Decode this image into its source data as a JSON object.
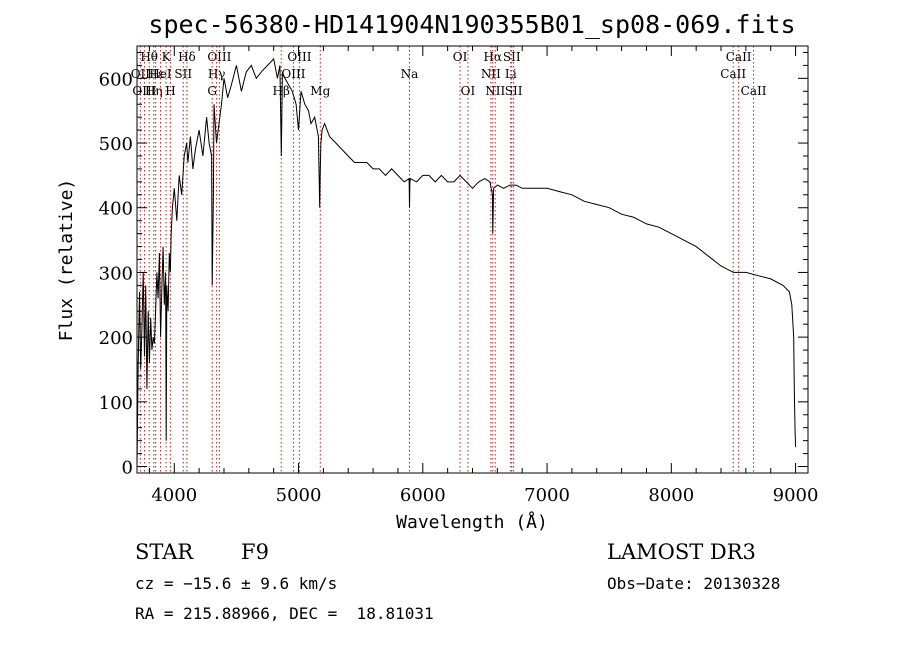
{
  "chart_data": {
    "type": "line",
    "title": "spec-56380-HD141904N190355B01_sp08-069.fits",
    "xlabel": "Wavelength (Å)",
    "ylabel": "Flux (relative)",
    "xlim": [
      3700,
      9100
    ],
    "ylim": [
      -10,
      650
    ],
    "xticks": [
      4000,
      5000,
      6000,
      7000,
      8000,
      9000
    ],
    "yticks": [
      0,
      100,
      200,
      300,
      400,
      500,
      600
    ],
    "series": [
      {
        "name": "flux",
        "x": [
          3700,
          3710,
          3720,
          3730,
          3740,
          3750,
          3760,
          3770,
          3780,
          3790,
          3800,
          3810,
          3820,
          3830,
          3840,
          3850,
          3860,
          3870,
          3880,
          3890,
          3900,
          3910,
          3920,
          3930,
          3935,
          3940,
          3950,
          3960,
          3968,
          3975,
          3985,
          4000,
          4020,
          4040,
          4060,
          4080,
          4100,
          4110,
          4130,
          4150,
          4170,
          4200,
          4230,
          4260,
          4280,
          4300,
          4305,
          4310,
          4315,
          4320,
          4340,
          4360,
          4380,
          4400,
          4430,
          4460,
          4500,
          4540,
          4580,
          4620,
          4660,
          4700,
          4750,
          4800,
          4830,
          4850,
          4861,
          4870,
          4890,
          4920,
          4950,
          4980,
          5000,
          5020,
          5050,
          5080,
          5100,
          5130,
          5160,
          5170,
          5175,
          5180,
          5190,
          5210,
          5250,
          5300,
          5350,
          5400,
          5450,
          5500,
          5550,
          5600,
          5650,
          5700,
          5750,
          5800,
          5850,
          5890,
          5893,
          5896,
          5900,
          5950,
          6000,
          6050,
          6100,
          6150,
          6200,
          6250,
          6300,
          6350,
          6400,
          6450,
          6500,
          6540,
          6560,
          6563,
          6570,
          6600,
          6650,
          6700,
          6750,
          6800,
          6850,
          6900,
          7000,
          7100,
          7200,
          7300,
          7400,
          7500,
          7600,
          7700,
          7800,
          7900,
          8000,
          8100,
          8200,
          8300,
          8400,
          8500,
          8540,
          8600,
          8700,
          8800,
          8900,
          8950,
          8970,
          8985,
          8990,
          8995,
          9000
        ],
        "values": [
          0,
          160,
          270,
          150,
          220,
          300,
          170,
          280,
          120,
          240,
          160,
          230,
          180,
          200,
          190,
          240,
          300,
          260,
          330,
          200,
          280,
          340,
          250,
          300,
          40,
          280,
          240,
          330,
          300,
          360,
          400,
          430,
          380,
          450,
          420,
          480,
          500,
          470,
          510,
          460,
          490,
          520,
          480,
          540,
          500,
          480,
          280,
          350,
          420,
          560,
          500,
          530,
          560,
          600,
          570,
          590,
          620,
          580,
          610,
          620,
          600,
          610,
          620,
          630,
          600,
          620,
          480,
          610,
          600,
          590,
          580,
          560,
          520,
          580,
          560,
          550,
          530,
          540,
          510,
          400,
          460,
          500,
          520,
          530,
          510,
          500,
          490,
          480,
          470,
          470,
          470,
          460,
          460,
          450,
          460,
          450,
          440,
          445,
          400,
          440,
          445,
          440,
          450,
          450,
          440,
          450,
          440,
          440,
          450,
          440,
          430,
          440,
          445,
          440,
          420,
          360,
          430,
          435,
          430,
          435,
          435,
          430,
          430,
          430,
          430,
          425,
          420,
          410,
          405,
          400,
          390,
          385,
          375,
          370,
          360,
          350,
          340,
          325,
          310,
          300,
          300,
          300,
          295,
          290,
          280,
          270,
          250,
          200,
          120,
          60,
          30
        ],
        "color": "#000000"
      }
    ],
    "line_markers": [
      {
        "name": "Hθ",
        "x": 3798,
        "row": 1
      },
      {
        "name": "OII",
        "x": 3727,
        "row": 2
      },
      {
        "name": "OIII",
        "x": 3760,
        "row": 3
      },
      {
        "name": "K",
        "x": 3934,
        "row": 1
      },
      {
        "name": "Hε",
        "x": 3850,
        "row": 2
      },
      {
        "name": "Hη",
        "x": 3835,
        "row": 3
      },
      {
        "name": "H",
        "x": 3969,
        "row": 3
      },
      {
        "name": "Hδ",
        "x": 4102,
        "row": 1
      },
      {
        "name": "HeI",
        "x": 3889,
        "row": 2
      },
      {
        "name": "SII",
        "x": 4072,
        "row": 2
      },
      {
        "name": "OIII",
        "x": 4363,
        "row": 1
      },
      {
        "name": "Hγ",
        "x": 4341,
        "row": 2
      },
      {
        "name": "G",
        "x": 4305,
        "row": 3
      },
      {
        "name": "OIII",
        "x": 5007,
        "row": 1
      },
      {
        "name": "OIII",
        "x": 4959,
        "row": 2
      },
      {
        "name": "Hβ",
        "x": 4861,
        "row": 3
      },
      {
        "name": "Mg",
        "x": 5175,
        "row": 3
      },
      {
        "name": "Na",
        "x": 5893,
        "row": 2
      },
      {
        "name": "OI",
        "x": 6300,
        "row": 1
      },
      {
        "name": "OI",
        "x": 6363,
        "row": 3
      },
      {
        "name": "Hα",
        "x": 6563,
        "row": 1
      },
      {
        "name": "NII",
        "x": 6548,
        "row": 2
      },
      {
        "name": "NII",
        "x": 6583,
        "row": 3
      },
      {
        "name": "SII",
        "x": 6716,
        "row": 1
      },
      {
        "name": "Li",
        "x": 6708,
        "row": 2
      },
      {
        "name": "SII",
        "x": 6731,
        "row": 3
      },
      {
        "name": "CaII",
        "x": 8542,
        "row": 1
      },
      {
        "name": "CaII",
        "x": 8498,
        "row": 2
      },
      {
        "name": "CaII",
        "x": 8662,
        "row": 3
      }
    ]
  },
  "info": {
    "class_label": "STAR",
    "subclass": "F9",
    "survey": "LAMOST DR3",
    "redshift": "cz = −15.6 ± 9.6 km/s",
    "obs_date": "Obs−Date: 20130328",
    "coords": "RA = 215.88966, DEC =  18.81031"
  },
  "colors": {
    "line_marker": "#b22222",
    "spectrum": "#000000"
  }
}
